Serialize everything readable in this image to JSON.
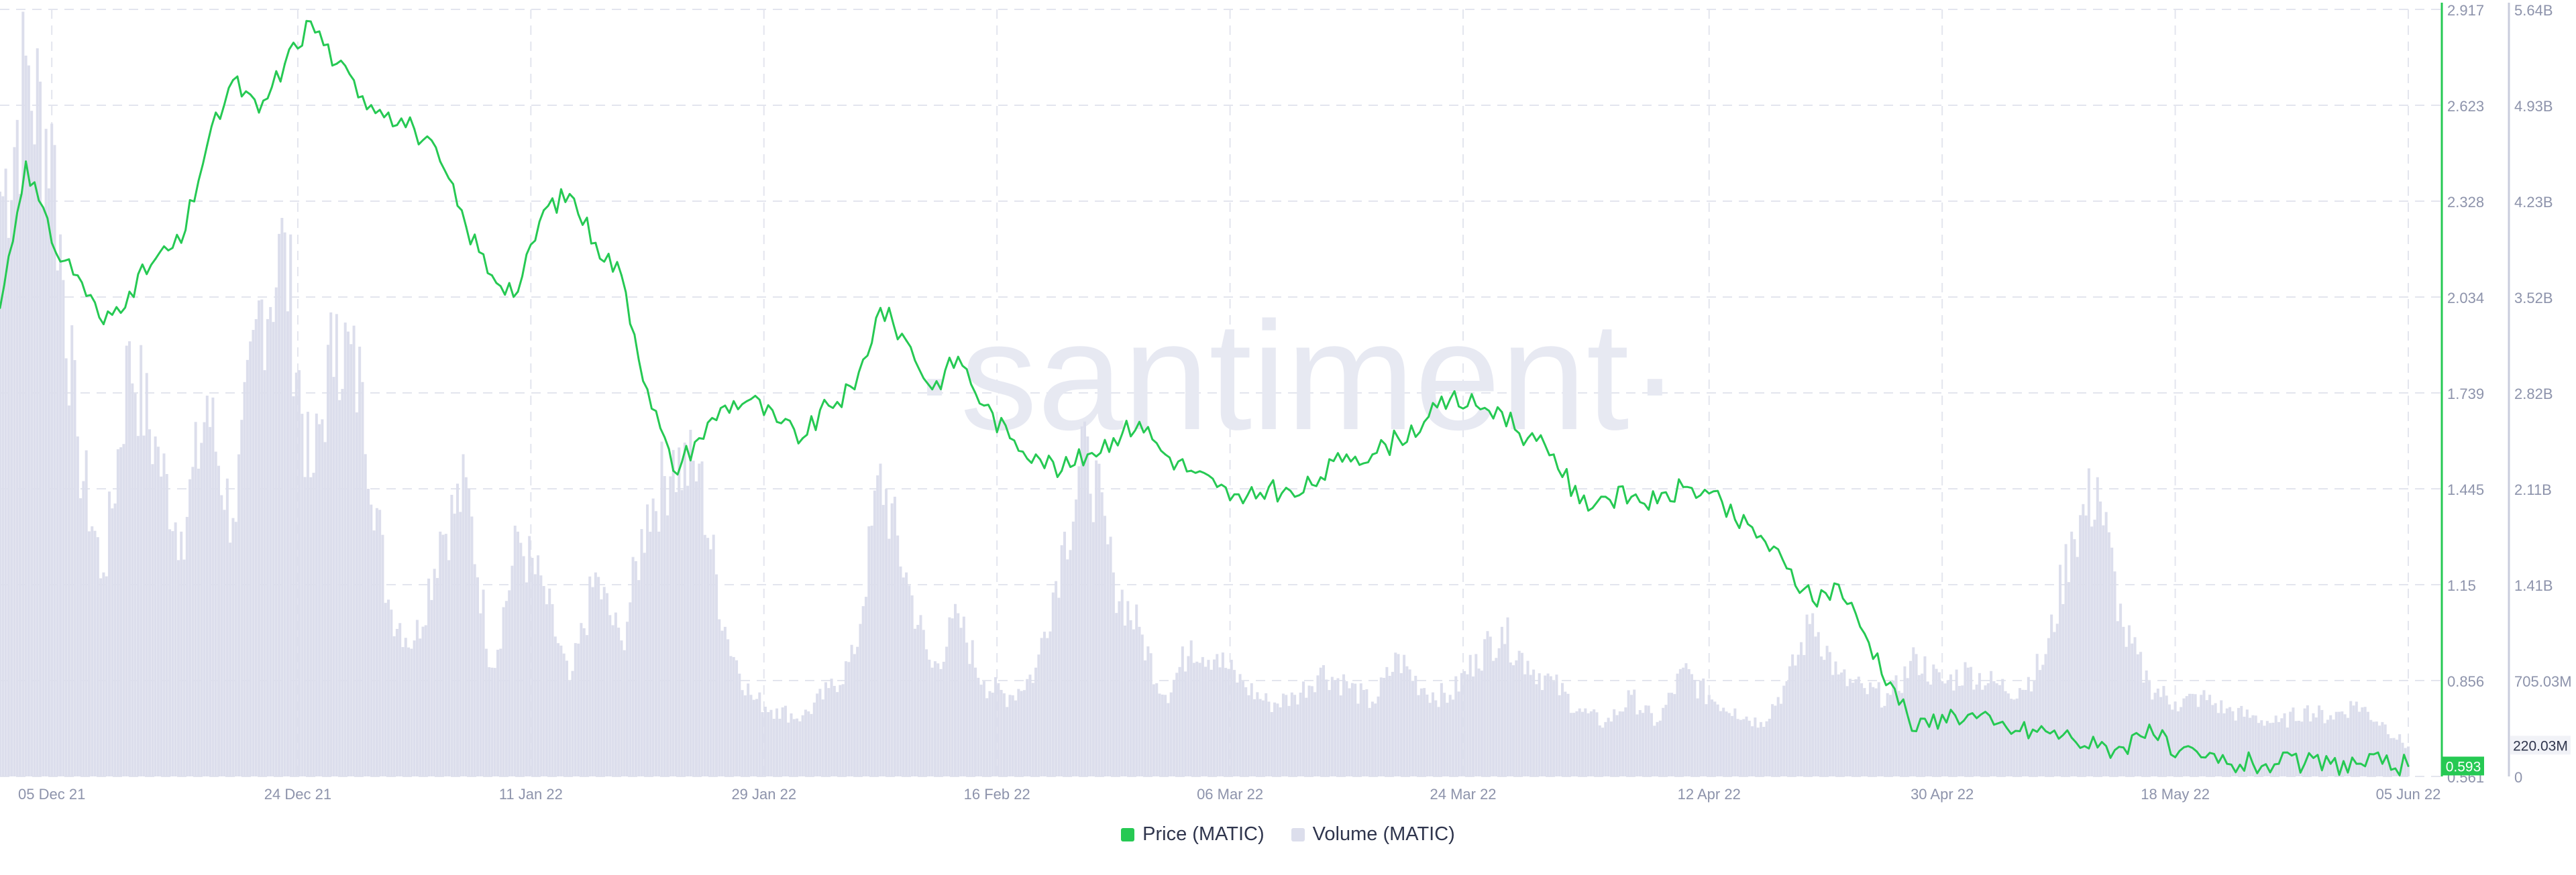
{
  "colors": {
    "price": "#26c953",
    "volume": "#dcdeec",
    "grid": "#e3e5ee",
    "axis_text": "#8d93ab",
    "watermark": "#e7e9f2"
  },
  "watermark": "·santiment·",
  "legend": {
    "price_label": "Price (MATIC)",
    "volume_label": "Volume (MATIC)"
  },
  "chart_data": {
    "type": "line",
    "grid": true,
    "legend_position": "bottom-center",
    "x_ticks": [
      "05 Dec 21",
      "24 Dec 21",
      "11 Jan 22",
      "29 Jan 22",
      "16 Feb 22",
      "06 Mar 22",
      "24 Mar 22",
      "12 Apr 22",
      "30 Apr 22",
      "18 May 22",
      "05 Jun 22"
    ],
    "price_axis": {
      "ticks": [
        "2.917",
        "2.623",
        "2.328",
        "2.034",
        "1.739",
        "1.445",
        "1.15",
        "0.856",
        "0.561"
      ],
      "ylim": [
        0.561,
        2.917
      ]
    },
    "volume_axis": {
      "ticks": [
        "5.64B",
        "4.93B",
        "4.23B",
        "3.52B",
        "2.82B",
        "2.11B",
        "1.41B",
        "705.03M",
        "0"
      ],
      "ylim": [
        0,
        5640000000
      ]
    },
    "current_price_label": "0.593",
    "current_volume_label": "220.03M",
    "series": [
      {
        "name": "Price (MATIC)",
        "axis": "left",
        "x": [
          "2021-12-01",
          "2021-12-03",
          "2021-12-05",
          "2021-12-07",
          "2021-12-09",
          "2021-12-11",
          "2021-12-13",
          "2021-12-15",
          "2021-12-17",
          "2021-12-19",
          "2021-12-21",
          "2021-12-23",
          "2021-12-25",
          "2021-12-27",
          "2021-12-29",
          "2021-12-31",
          "2022-01-02",
          "2022-01-04",
          "2022-01-06",
          "2022-01-08",
          "2022-01-10",
          "2022-01-12",
          "2022-01-14",
          "2022-01-16",
          "2022-01-18",
          "2022-01-20",
          "2022-01-22",
          "2022-01-24",
          "2022-01-26",
          "2022-01-28",
          "2022-01-30",
          "2022-02-01",
          "2022-02-03",
          "2022-02-05",
          "2022-02-07",
          "2022-02-09",
          "2022-02-11",
          "2022-02-13",
          "2022-02-15",
          "2022-02-17",
          "2022-02-19",
          "2022-02-21",
          "2022-02-23",
          "2022-02-25",
          "2022-02-27",
          "2022-03-01",
          "2022-03-03",
          "2022-03-05",
          "2022-03-07",
          "2022-03-09",
          "2022-03-11",
          "2022-03-13",
          "2022-03-15",
          "2022-03-17",
          "2022-03-19",
          "2022-03-21",
          "2022-03-23",
          "2022-03-25",
          "2022-03-27",
          "2022-03-29",
          "2022-03-31",
          "2022-04-02",
          "2022-04-04",
          "2022-04-06",
          "2022-04-08",
          "2022-04-10",
          "2022-04-12",
          "2022-04-14",
          "2022-04-16",
          "2022-04-18",
          "2022-04-20",
          "2022-04-22",
          "2022-04-24",
          "2022-04-26",
          "2022-04-28",
          "2022-04-30",
          "2022-05-02",
          "2022-05-04",
          "2022-05-06",
          "2022-05-08",
          "2022-05-10",
          "2022-05-12",
          "2022-05-14",
          "2022-05-16",
          "2022-05-18",
          "2022-05-20",
          "2022-05-22",
          "2022-05-24",
          "2022-05-26",
          "2022-05-28",
          "2022-05-30",
          "2022-06-01",
          "2022-06-03",
          "2022-06-05"
        ],
        "values": [
          2.0,
          2.45,
          2.2,
          2.1,
          1.95,
          2.05,
          2.15,
          2.2,
          2.5,
          2.7,
          2.6,
          2.75,
          2.88,
          2.75,
          2.65,
          2.6,
          2.55,
          2.45,
          2.25,
          2.1,
          2.05,
          2.3,
          2.35,
          2.2,
          2.1,
          1.75,
          1.5,
          1.6,
          1.7,
          1.72,
          1.65,
          1.6,
          1.7,
          1.75,
          2.0,
          1.9,
          1.75,
          1.85,
          1.7,
          1.6,
          1.55,
          1.5,
          1.55,
          1.6,
          1.65,
          1.55,
          1.5,
          1.45,
          1.4,
          1.45,
          1.42,
          1.48,
          1.55,
          1.55,
          1.6,
          1.65,
          1.72,
          1.7,
          1.68,
          1.6,
          1.55,
          1.4,
          1.42,
          1.42,
          1.4,
          1.45,
          1.43,
          1.35,
          1.3,
          1.2,
          1.1,
          1.15,
          1.0,
          0.85,
          0.7,
          0.75,
          0.75,
          0.72,
          0.7,
          0.7,
          0.68,
          0.65,
          0.65,
          0.72,
          0.62,
          0.62,
          0.6,
          0.6,
          0.6,
          0.6,
          0.6,
          0.6,
          0.6,
          0.593
        ]
      },
      {
        "name": "Volume (MATIC)",
        "axis": "right",
        "type": "area",
        "x": [
          "2021-12-01",
          "2021-12-03",
          "2021-12-05",
          "2021-12-07",
          "2021-12-09",
          "2021-12-11",
          "2021-12-13",
          "2021-12-15",
          "2021-12-17",
          "2021-12-19",
          "2021-12-21",
          "2021-12-23",
          "2021-12-25",
          "2021-12-27",
          "2021-12-29",
          "2021-12-31",
          "2022-01-02",
          "2022-01-04",
          "2022-01-06",
          "2022-01-08",
          "2022-01-10",
          "2022-01-12",
          "2022-01-14",
          "2022-01-16",
          "2022-01-18",
          "2022-01-20",
          "2022-01-22",
          "2022-01-24",
          "2022-01-26",
          "2022-01-28",
          "2022-01-30",
          "2022-02-01",
          "2022-02-03",
          "2022-02-05",
          "2022-02-07",
          "2022-02-09",
          "2022-02-11",
          "2022-02-13",
          "2022-02-15",
          "2022-02-17",
          "2022-02-19",
          "2022-02-21",
          "2022-02-23",
          "2022-02-25",
          "2022-02-27",
          "2022-03-01",
          "2022-03-03",
          "2022-03-05",
          "2022-03-07",
          "2022-03-09",
          "2022-03-11",
          "2022-03-13",
          "2022-03-15",
          "2022-03-17",
          "2022-03-19",
          "2022-03-21",
          "2022-03-23",
          "2022-03-25",
          "2022-03-27",
          "2022-03-29",
          "2022-03-31",
          "2022-04-02",
          "2022-04-04",
          "2022-04-06",
          "2022-04-08",
          "2022-04-10",
          "2022-04-12",
          "2022-04-14",
          "2022-04-16",
          "2022-04-18",
          "2022-04-20",
          "2022-04-22",
          "2022-04-24",
          "2022-04-26",
          "2022-04-28",
          "2022-04-30",
          "2022-05-02",
          "2022-05-04",
          "2022-05-06",
          "2022-05-08",
          "2022-05-10",
          "2022-05-12",
          "2022-05-14",
          "2022-05-16",
          "2022-05-18",
          "2022-05-20",
          "2022-05-22",
          "2022-05-24",
          "2022-05-26",
          "2022-05-28",
          "2022-05-30",
          "2022-06-01",
          "2022-06-03",
          "2022-06-05"
        ],
        "values": [
          4300000000,
          5300000000,
          4800000000,
          2500000000,
          1500000000,
          3200000000,
          2500000000,
          1800000000,
          2800000000,
          1900000000,
          3500000000,
          4000000000,
          2200000000,
          3400000000,
          2900000000,
          1300000000,
          1000000000,
          1800000000,
          2200000000,
          800000000,
          1800000000,
          1400000000,
          700000000,
          1500000000,
          1000000000,
          2000000000,
          2400000000,
          2300000000,
          1100000000,
          600000000,
          500000000,
          450000000,
          650000000,
          900000000,
          2300000000,
          1500000000,
          800000000,
          1200000000,
          700000000,
          600000000,
          800000000,
          1700000000,
          2500000000,
          1500000000,
          1100000000,
          600000000,
          1000000000,
          900000000,
          700000000,
          550000000,
          600000000,
          800000000,
          700000000,
          550000000,
          900000000,
          650000000,
          600000000,
          900000000,
          1100000000,
          850000000,
          700000000,
          500000000,
          400000000,
          600000000,
          400000000,
          800000000,
          600000000,
          500000000,
          400000000,
          700000000,
          1200000000,
          750000000,
          650000000,
          600000000,
          900000000,
          700000000,
          800000000,
          700000000,
          650000000,
          900000000,
          1800000000,
          2200000000,
          1100000000,
          700000000,
          550000000,
          600000000,
          500000000,
          450000000,
          400000000,
          500000000,
          450000000,
          550000000,
          400000000,
          220030000
        ]
      }
    ]
  }
}
